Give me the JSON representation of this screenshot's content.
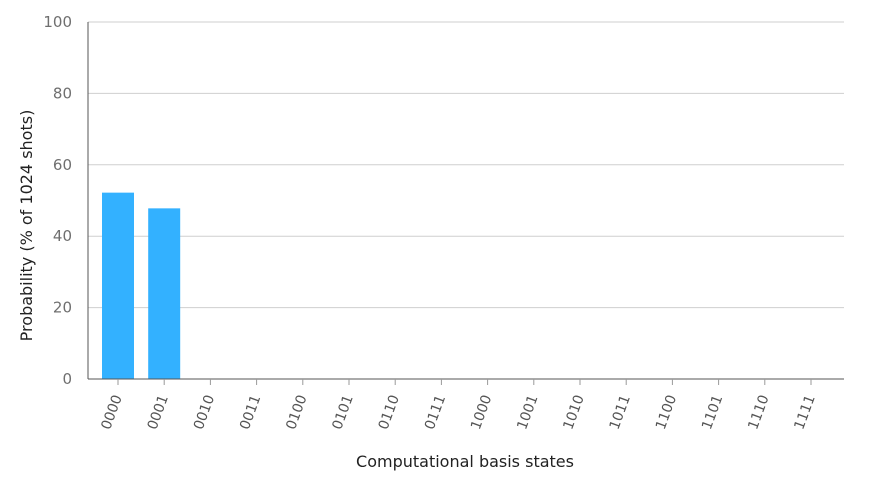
{
  "chart_data": {
    "type": "bar",
    "title": "",
    "xlabel": "Computational basis states",
    "ylabel": "Probability (% of 1024 shots)",
    "ylim": [
      0,
      100
    ],
    "yticks": [
      0,
      20,
      40,
      60,
      80,
      100
    ],
    "grid": true,
    "categories": [
      "0000",
      "0001",
      "0010",
      "0011",
      "0100",
      "0101",
      "0110",
      "0111",
      "1000",
      "1001",
      "1010",
      "1011",
      "1100",
      "1101",
      "1110",
      "1111"
    ],
    "values": [
      52.2,
      47.8,
      0,
      0,
      0,
      0,
      0,
      0,
      0,
      0,
      0,
      0,
      0,
      0,
      0,
      0
    ],
    "bar_color": "#33b1ff"
  }
}
